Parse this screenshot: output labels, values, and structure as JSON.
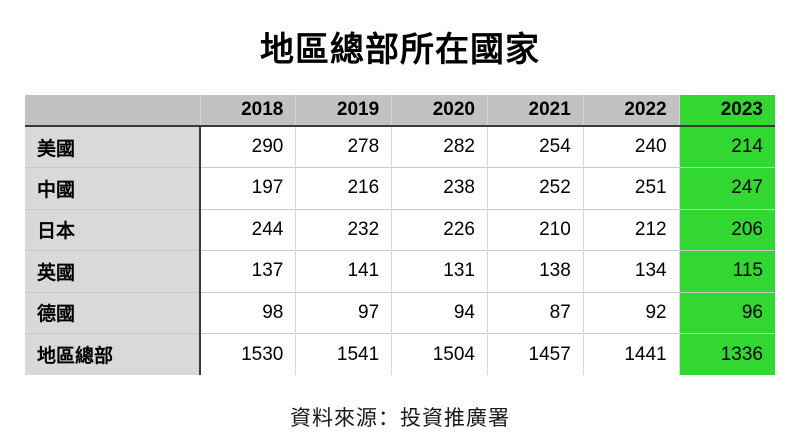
{
  "title": "地區總部所在國家",
  "source": "資料來源：投資推廣署",
  "colors": {
    "highlight": "#32d732",
    "header_bg": "#c2c2c2",
    "label_bg": "#d9d9d9",
    "dark_line": "#3a3a3a"
  },
  "chart_data": {
    "type": "table",
    "title": "地區總部所在國家",
    "columns": [
      "2018",
      "2019",
      "2020",
      "2021",
      "2022",
      "2023"
    ],
    "highlight_column": "2023",
    "rows": [
      {
        "label": "美國",
        "values": [
          290,
          278,
          282,
          254,
          240,
          214
        ]
      },
      {
        "label": "中國",
        "values": [
          197,
          216,
          238,
          252,
          251,
          247
        ]
      },
      {
        "label": "日本",
        "values": [
          244,
          232,
          226,
          210,
          212,
          206
        ]
      },
      {
        "label": "英國",
        "values": [
          137,
          141,
          131,
          138,
          134,
          115
        ]
      },
      {
        "label": "德國",
        "values": [
          98,
          97,
          94,
          87,
          92,
          96
        ]
      },
      {
        "label": "地區總部",
        "values": [
          1530,
          1541,
          1504,
          1457,
          1441,
          1336
        ]
      }
    ],
    "source": "資料來源：投資推廣署"
  }
}
